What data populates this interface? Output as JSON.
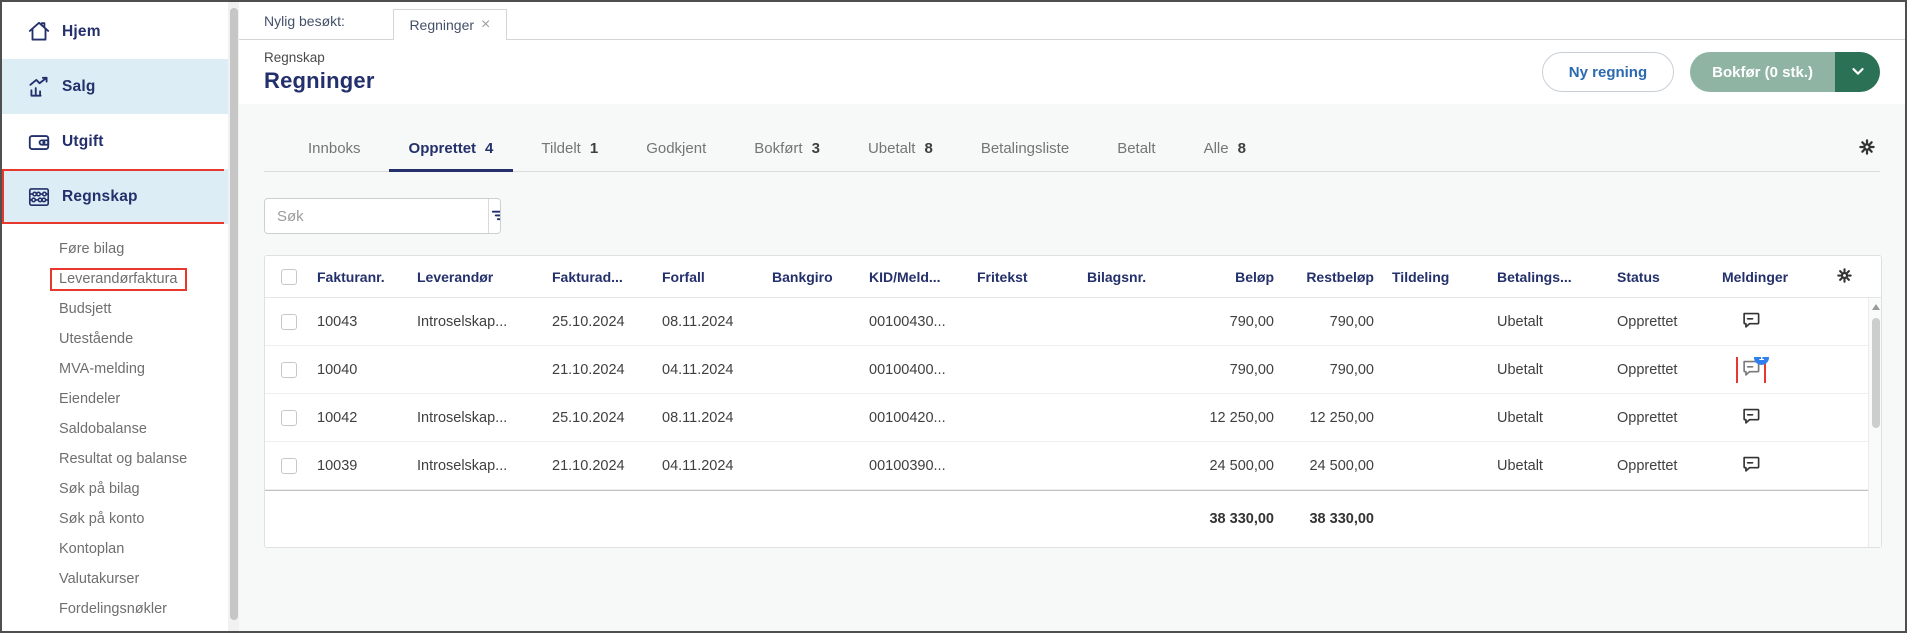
{
  "colors": {
    "navy": "#23306b",
    "annotation_red": "#e8382e",
    "badge_blue": "#2f80ed",
    "green_light": "#8fb4a3",
    "green_dark": "#2b7156",
    "link_blue": "#2c6ab0",
    "active_item_bg": "#dcedf5"
  },
  "sidebar": {
    "items": [
      {
        "label": "Hjem",
        "icon": "home-icon",
        "active": false,
        "outlined": false
      },
      {
        "label": "Salg",
        "icon": "sales-chart-icon",
        "active": true,
        "outlined": false
      },
      {
        "label": "Utgift",
        "icon": "wallet-icon",
        "active": false,
        "outlined": false
      },
      {
        "label": "Regnskap",
        "icon": "abacus-icon",
        "active": true,
        "outlined": true
      }
    ],
    "subitems": [
      {
        "label": "Føre bilag",
        "outlined": false
      },
      {
        "label": "Leverandørfaktura",
        "outlined": true
      },
      {
        "label": "Budsjett",
        "outlined": false
      },
      {
        "label": "Utestående",
        "outlined": false
      },
      {
        "label": "MVA-melding",
        "outlined": false
      },
      {
        "label": "Eiendeler",
        "outlined": false
      },
      {
        "label": "Saldobalanse",
        "outlined": false
      },
      {
        "label": "Resultat og balanse",
        "outlined": false
      },
      {
        "label": "Søk på bilag",
        "outlined": false
      },
      {
        "label": "Søk på konto",
        "outlined": false
      },
      {
        "label": "Kontoplan",
        "outlined": false
      },
      {
        "label": "Valutakurser",
        "outlined": false
      },
      {
        "label": "Fordelingsnøkler",
        "outlined": false
      }
    ]
  },
  "recent": {
    "label": "Nylig besøkt:",
    "tab": "Regninger",
    "close": "×"
  },
  "header": {
    "breadcrumb": "Regnskap",
    "title": "Regninger",
    "new_button": "Ny regning",
    "post_button": "Bokfør (0 stk.)"
  },
  "tabs": [
    {
      "label": "Innboks",
      "count": "",
      "active": false
    },
    {
      "label": "Opprettet",
      "count": "4",
      "active": true
    },
    {
      "label": "Tildelt",
      "count": "1",
      "active": false
    },
    {
      "label": "Godkjent",
      "count": "",
      "active": false
    },
    {
      "label": "Bokført",
      "count": "3",
      "active": false
    },
    {
      "label": "Ubetalt",
      "count": "8",
      "active": false
    },
    {
      "label": "Betalingsliste",
      "count": "",
      "active": false
    },
    {
      "label": "Betalt",
      "count": "",
      "active": false
    },
    {
      "label": "Alle",
      "count": "8",
      "active": false
    }
  ],
  "search": {
    "placeholder": "Søk"
  },
  "table": {
    "columns": [
      {
        "id": "select",
        "label": "",
        "type": "checkbox"
      },
      {
        "id": "fakturanr",
        "label": "Fakturanr."
      },
      {
        "id": "leverandor",
        "label": "Leverandør"
      },
      {
        "id": "fakturadato",
        "label": "Fakturad..."
      },
      {
        "id": "forfall",
        "label": "Forfall"
      },
      {
        "id": "bankgiro",
        "label": "Bankgiro"
      },
      {
        "id": "kid",
        "label": "KID/Meld..."
      },
      {
        "id": "fritekst",
        "label": "Fritekst"
      },
      {
        "id": "bilagsnr",
        "label": "Bilagsnr."
      },
      {
        "id": "belop",
        "label": "Beløp",
        "align": "right"
      },
      {
        "id": "restbelop",
        "label": "Restbeløp",
        "align": "right"
      },
      {
        "id": "tildeling",
        "label": "Tildeling"
      },
      {
        "id": "betalingsstatus",
        "label": "Betalings..."
      },
      {
        "id": "status",
        "label": "Status"
      },
      {
        "id": "meldinger",
        "label": "Meldinger",
        "type": "message"
      },
      {
        "id": "settings",
        "label": "",
        "type": "gear"
      }
    ],
    "rows": [
      {
        "fakturanr": "10043",
        "leverandor": "Introselskap...",
        "fakturadato": "25.10.2024",
        "forfall": "08.11.2024",
        "bankgiro": "",
        "kid": "00100430...",
        "fritekst": "",
        "bilagsnr": "",
        "belop": "790,00",
        "restbelop": "790,00",
        "tildeling": "",
        "betalingsstatus": "Ubetalt",
        "status": "Opprettet",
        "message_badge": "",
        "message_highlighted": false
      },
      {
        "fakturanr": "10040",
        "leverandor": "",
        "fakturadato": "21.10.2024",
        "forfall": "04.11.2024",
        "bankgiro": "",
        "kid": "00100400...",
        "fritekst": "",
        "bilagsnr": "",
        "belop": "790,00",
        "restbelop": "790,00",
        "tildeling": "",
        "betalingsstatus": "Ubetalt",
        "status": "Opprettet",
        "message_badge": "1",
        "message_highlighted": true
      },
      {
        "fakturanr": "10042",
        "leverandor": "Introselskap...",
        "fakturadato": "25.10.2024",
        "forfall": "08.11.2024",
        "bankgiro": "",
        "kid": "00100420...",
        "fritekst": "",
        "bilagsnr": "",
        "belop": "12 250,00",
        "restbelop": "12 250,00",
        "tildeling": "",
        "betalingsstatus": "Ubetalt",
        "status": "Opprettet",
        "message_badge": "",
        "message_highlighted": false
      },
      {
        "fakturanr": "10039",
        "leverandor": "Introselskap...",
        "fakturadato": "21.10.2024",
        "forfall": "04.11.2024",
        "bankgiro": "",
        "kid": "00100390...",
        "fritekst": "",
        "bilagsnr": "",
        "belop": "24 500,00",
        "restbelop": "24 500,00",
        "tildeling": "",
        "betalingsstatus": "Ubetalt",
        "status": "Opprettet",
        "message_badge": "",
        "message_highlighted": false
      }
    ],
    "totals": {
      "belop": "38 330,00",
      "restbelop": "38 330,00"
    }
  }
}
